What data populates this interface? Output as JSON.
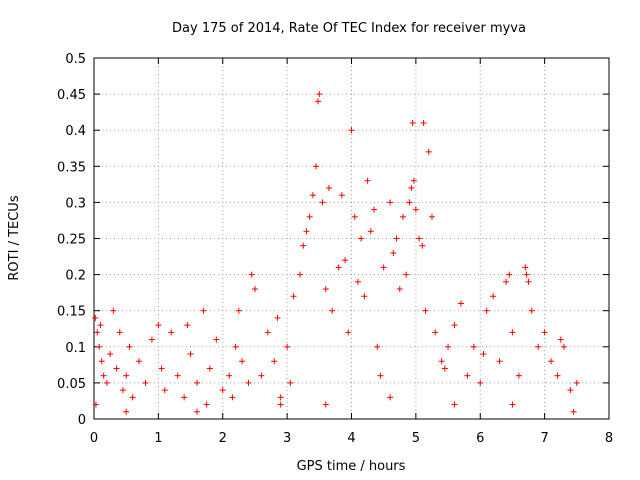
{
  "chart_data": {
    "type": "scatter",
    "title": "Day 175 of 2014, Rate Of TEC Index for receiver myva",
    "xlabel": "GPS time / hours",
    "ylabel": "ROTI / TECUs",
    "xlim": [
      0,
      8
    ],
    "ylim": [
      0,
      0.5
    ],
    "x_ticks": [
      "0",
      "1",
      "2",
      "3",
      "4",
      "5",
      "6",
      "7",
      "8"
    ],
    "y_ticks": [
      "0",
      "0.05",
      "0.1",
      "0.15",
      "0.2",
      "0.25",
      "0.3",
      "0.35",
      "0.4",
      "0.45",
      "0.5"
    ],
    "grid": true,
    "marker": "+",
    "color": "#ff0000",
    "series": [
      {
        "name": "ROTI",
        "points": [
          [
            0.02,
            0.14
          ],
          [
            0.05,
            0.12
          ],
          [
            0.08,
            0.1
          ],
          [
            0.1,
            0.13
          ],
          [
            0.12,
            0.08
          ],
          [
            0.15,
            0.06
          ],
          [
            0.2,
            0.05
          ],
          [
            0.25,
            0.09
          ],
          [
            0.3,
            0.15
          ],
          [
            0.35,
            0.07
          ],
          [
            0.4,
            0.12
          ],
          [
            0.45,
            0.04
          ],
          [
            0.5,
            0.06
          ],
          [
            0.55,
            0.1
          ],
          [
            0.6,
            0.03
          ],
          [
            0.7,
            0.08
          ],
          [
            0.8,
            0.05
          ],
          [
            0.9,
            0.11
          ],
          [
            1.0,
            0.13
          ],
          [
            1.05,
            0.07
          ],
          [
            1.1,
            0.04
          ],
          [
            1.2,
            0.12
          ],
          [
            1.3,
            0.06
          ],
          [
            1.4,
            0.03
          ],
          [
            1.45,
            0.13
          ],
          [
            1.5,
            0.09
          ],
          [
            1.6,
            0.05
          ],
          [
            1.7,
            0.15
          ],
          [
            1.75,
            0.02
          ],
          [
            1.8,
            0.07
          ],
          [
            1.9,
            0.11
          ],
          [
            2.0,
            0.04
          ],
          [
            2.1,
            0.06
          ],
          [
            2.2,
            0.1
          ],
          [
            2.25,
            0.15
          ],
          [
            2.3,
            0.08
          ],
          [
            2.4,
            0.05
          ],
          [
            2.45,
            0.2
          ],
          [
            2.5,
            0.18
          ],
          [
            2.6,
            0.06
          ],
          [
            2.7,
            0.12
          ],
          [
            2.8,
            0.08
          ],
          [
            2.85,
            0.14
          ],
          [
            2.9,
            0.03
          ],
          [
            3.0,
            0.1
          ],
          [
            3.1,
            0.17
          ],
          [
            3.2,
            0.2
          ],
          [
            3.25,
            0.24
          ],
          [
            3.3,
            0.26
          ],
          [
            3.35,
            0.28
          ],
          [
            3.4,
            0.31
          ],
          [
            3.45,
            0.35
          ],
          [
            3.48,
            0.44
          ],
          [
            3.5,
            0.45
          ],
          [
            3.55,
            0.3
          ],
          [
            3.6,
            0.18
          ],
          [
            3.65,
            0.32
          ],
          [
            3.7,
            0.15
          ],
          [
            3.8,
            0.21
          ],
          [
            3.85,
            0.31
          ],
          [
            3.9,
            0.22
          ],
          [
            3.95,
            0.12
          ],
          [
            4.0,
            0.4
          ],
          [
            4.05,
            0.28
          ],
          [
            4.1,
            0.19
          ],
          [
            4.15,
            0.25
          ],
          [
            4.2,
            0.17
          ],
          [
            4.25,
            0.33
          ],
          [
            4.3,
            0.26
          ],
          [
            4.35,
            0.29
          ],
          [
            4.4,
            0.1
          ],
          [
            4.5,
            0.21
          ],
          [
            4.6,
            0.3
          ],
          [
            4.65,
            0.23
          ],
          [
            4.7,
            0.25
          ],
          [
            4.75,
            0.18
          ],
          [
            4.8,
            0.28
          ],
          [
            4.85,
            0.2
          ],
          [
            4.9,
            0.3
          ],
          [
            4.93,
            0.32
          ],
          [
            4.95,
            0.41
          ],
          [
            4.97,
            0.33
          ],
          [
            5.0,
            0.29
          ],
          [
            5.05,
            0.25
          ],
          [
            5.1,
            0.24
          ],
          [
            5.12,
            0.41
          ],
          [
            5.15,
            0.15
          ],
          [
            5.2,
            0.37
          ],
          [
            5.25,
            0.28
          ],
          [
            5.3,
            0.12
          ],
          [
            5.4,
            0.08
          ],
          [
            5.5,
            0.1
          ],
          [
            5.6,
            0.13
          ],
          [
            5.7,
            0.16
          ],
          [
            5.8,
            0.06
          ],
          [
            5.9,
            0.1
          ],
          [
            6.0,
            0.05
          ],
          [
            6.1,
            0.15
          ],
          [
            6.2,
            0.17
          ],
          [
            6.3,
            0.08
          ],
          [
            6.4,
            0.19
          ],
          [
            6.45,
            0.2
          ],
          [
            6.5,
            0.12
          ],
          [
            6.6,
            0.06
          ],
          [
            6.7,
            0.21
          ],
          [
            6.72,
            0.2
          ],
          [
            6.75,
            0.19
          ],
          [
            6.8,
            0.15
          ],
          [
            6.9,
            0.1
          ],
          [
            7.0,
            0.12
          ],
          [
            7.1,
            0.08
          ],
          [
            7.2,
            0.06
          ],
          [
            7.3,
            0.1
          ],
          [
            7.4,
            0.04
          ],
          [
            7.5,
            0.05
          ],
          [
            0.03,
            0.02
          ],
          [
            0.5,
            0.01
          ],
          [
            1.6,
            0.01
          ],
          [
            2.9,
            0.02
          ],
          [
            3.6,
            0.02
          ],
          [
            4.6,
            0.03
          ],
          [
            5.6,
            0.02
          ],
          [
            6.5,
            0.02
          ],
          [
            7.45,
            0.01
          ],
          [
            7.25,
            0.11
          ],
          [
            6.05,
            0.09
          ],
          [
            5.45,
            0.07
          ],
          [
            4.45,
            0.06
          ],
          [
            3.05,
            0.05
          ],
          [
            2.15,
            0.03
          ]
        ]
      }
    ]
  }
}
